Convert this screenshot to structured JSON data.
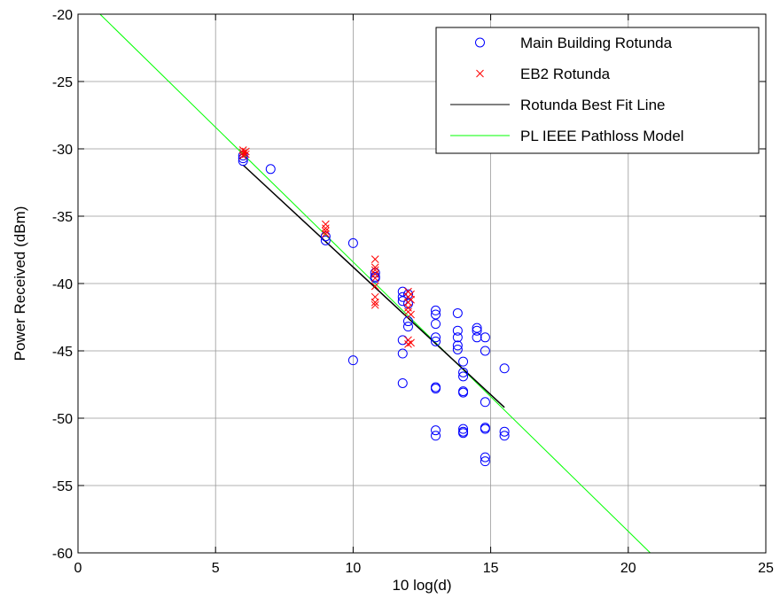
{
  "chart_data": {
    "type": "scatter",
    "xlabel": "10 log(d)",
    "ylabel": "Power Received (dBm)",
    "xlim": [
      0,
      25
    ],
    "ylim": [
      -60,
      -20
    ],
    "xticks": [
      0,
      5,
      10,
      15,
      20,
      25
    ],
    "yticks": [
      -60,
      -55,
      -50,
      -45,
      -40,
      -35,
      -30,
      -25,
      -20
    ],
    "grid": true,
    "legend_position": "top-right",
    "series": [
      {
        "name": "Main Building Rotunda",
        "kind": "scatter",
        "marker": "circle",
        "color": "#0000ff",
        "points": [
          [
            6.0,
            -30.7
          ],
          [
            6.0,
            -30.9
          ],
          [
            6.0,
            -30.5
          ],
          [
            7.0,
            -31.5
          ],
          [
            9.0,
            -36.5
          ],
          [
            9.0,
            -36.8
          ],
          [
            10.0,
            -37.0
          ],
          [
            10.0,
            -45.7
          ],
          [
            10.8,
            -39.2
          ],
          [
            10.8,
            -39.5
          ],
          [
            10.8,
            -39.6
          ],
          [
            11.8,
            -40.6
          ],
          [
            11.8,
            -41.0
          ],
          [
            11.8,
            -41.3
          ],
          [
            11.8,
            -44.2
          ],
          [
            11.8,
            -45.2
          ],
          [
            11.8,
            -47.4
          ],
          [
            12.0,
            -40.8
          ],
          [
            12.0,
            -41.5
          ],
          [
            12.0,
            -42.8
          ],
          [
            12.0,
            -43.2
          ],
          [
            13.0,
            -42.0
          ],
          [
            13.0,
            -42.3
          ],
          [
            13.0,
            -43.0
          ],
          [
            13.0,
            -44.0
          ],
          [
            13.0,
            -44.3
          ],
          [
            13.0,
            -47.7
          ],
          [
            13.0,
            -47.8
          ],
          [
            13.0,
            -50.9
          ],
          [
            13.0,
            -51.3
          ],
          [
            13.8,
            -42.2
          ],
          [
            13.8,
            -43.5
          ],
          [
            13.8,
            -44.0
          ],
          [
            13.8,
            -44.6
          ],
          [
            13.8,
            -44.9
          ],
          [
            14.0,
            -45.8
          ],
          [
            14.0,
            -46.6
          ],
          [
            14.0,
            -46.9
          ],
          [
            14.0,
            -48.0
          ],
          [
            14.0,
            -48.1
          ],
          [
            14.0,
            -50.8
          ],
          [
            14.0,
            -51.0
          ],
          [
            14.0,
            -51.1
          ],
          [
            14.5,
            -43.3
          ],
          [
            14.5,
            -43.5
          ],
          [
            14.5,
            -44.0
          ],
          [
            14.8,
            -44.0
          ],
          [
            14.8,
            -45.0
          ],
          [
            14.8,
            -48.8
          ],
          [
            14.8,
            -50.7
          ],
          [
            14.8,
            -50.8
          ],
          [
            14.8,
            -52.9
          ],
          [
            14.8,
            -53.2
          ],
          [
            15.5,
            -46.3
          ],
          [
            15.5,
            -51.0
          ],
          [
            15.5,
            -51.3
          ]
        ]
      },
      {
        "name": "EB2 Rotunda",
        "kind": "scatter",
        "marker": "x",
        "color": "#ff0000",
        "points": [
          [
            6.0,
            -30.1
          ],
          [
            6.0,
            -30.3
          ],
          [
            6.0,
            -30.5
          ],
          [
            6.1,
            -30.2
          ],
          [
            6.1,
            -30.4
          ],
          [
            9.0,
            -35.6
          ],
          [
            9.0,
            -35.9
          ],
          [
            9.0,
            -36.1
          ],
          [
            9.0,
            -36.3
          ],
          [
            10.8,
            -38.2
          ],
          [
            10.8,
            -38.8
          ],
          [
            10.8,
            -39.0
          ],
          [
            10.8,
            -39.3
          ],
          [
            10.8,
            -39.6
          ],
          [
            10.8,
            -40.2
          ],
          [
            10.8,
            -41.0
          ],
          [
            10.8,
            -41.4
          ],
          [
            10.8,
            -41.6
          ],
          [
            12.0,
            -40.6
          ],
          [
            12.0,
            -41.0
          ],
          [
            12.0,
            -41.4
          ],
          [
            12.0,
            -41.8
          ],
          [
            12.0,
            -42.1
          ],
          [
            12.0,
            -44.2
          ],
          [
            12.0,
            -44.5
          ],
          [
            12.1,
            -40.8
          ],
          [
            12.1,
            -41.2
          ],
          [
            12.1,
            -42.3
          ],
          [
            12.1,
            -44.4
          ]
        ]
      },
      {
        "name": "Rotunda Best Fit Line",
        "kind": "line",
        "color": "#000000",
        "points": [
          [
            6.0,
            -31.2
          ],
          [
            15.5,
            -49.2
          ]
        ]
      },
      {
        "name": "PL IEEE Pathloss Model",
        "kind": "line",
        "color": "#00ff00",
        "points": [
          [
            0.8,
            -20.0
          ],
          [
            20.8,
            -60.0
          ]
        ]
      }
    ]
  }
}
